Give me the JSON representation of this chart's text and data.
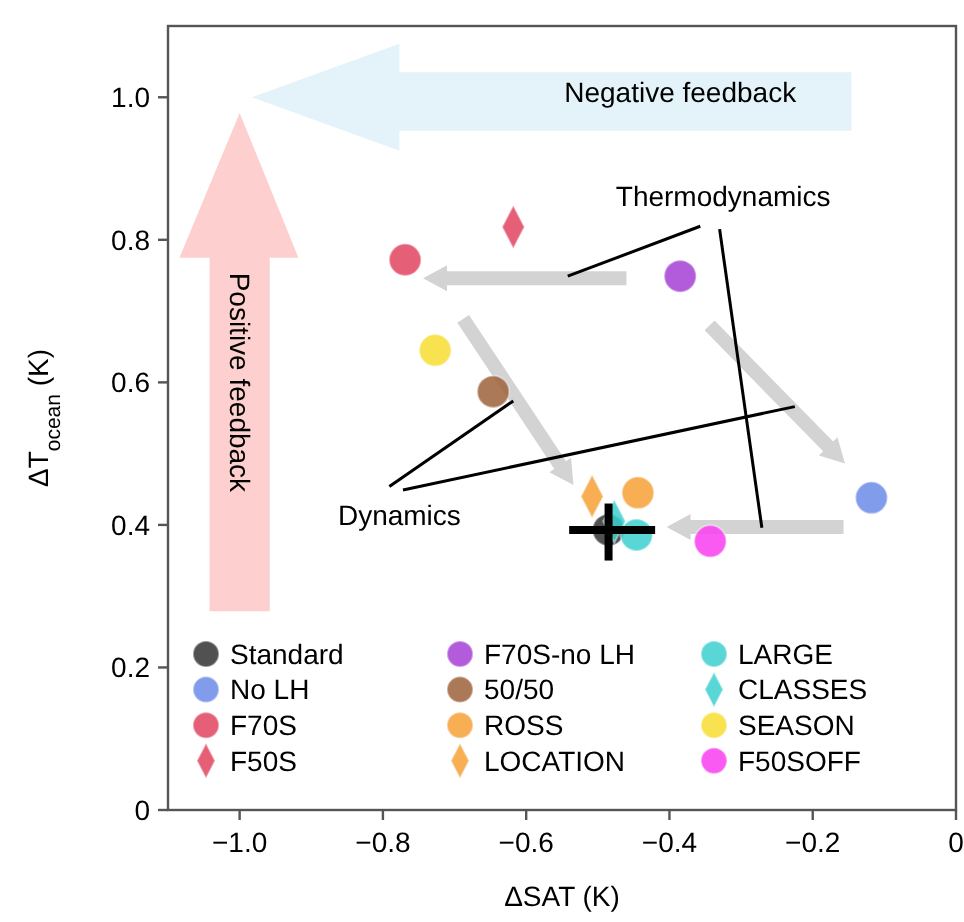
{
  "chart_data": {
    "type": "scatter",
    "xlabel": "ΔSAT (K)",
    "ylabel": "ΔT$_{ocean}$ (K)",
    "xlim": [
      -1.1,
      0
    ],
    "ylim": [
      0,
      1.1
    ],
    "xticks": [
      {
        "value": -1,
        "label": "−1.0"
      },
      {
        "value": -0.8,
        "label": "−0.8"
      },
      {
        "value": -0.6,
        "label": "−0.6"
      },
      {
        "value": -0.4,
        "label": "−0.4"
      },
      {
        "value": -0.2,
        "label": "−0.2"
      },
      0
    ],
    "yticks": [
      0,
      0.2,
      0.4,
      0.6,
      0.8,
      {
        "value": 1,
        "label": "1.0"
      }
    ],
    "legend": "bottom",
    "marker": "circle",
    "annotations": [
      "Negative feedback",
      "Positive feedback",
      "Thermodynamics",
      {
        "text": "Dynamics",
        "x": -0.618,
        "y": 0.574
      }
    ],
    "series": [
      {
        "name": "Standard",
        "color": "#333333",
        "x": [
          -0.485
        ],
        "values": [
          0.393
        ],
        "errors": [
          [
            0.35,
            0.43
          ]
        ],
        "xerrors": [
          [
            -0.54,
            -0.42
          ]
        ]
      },
      {
        "name": "No LH",
        "color": "#6b8be8",
        "x": [
          -0.118
        ],
        "values": [
          0.438
        ]
      },
      {
        "name": "F70S",
        "color": "#e0435f",
        "x": [
          -0.769
        ],
        "values": [
          0.772
        ]
      },
      {
        "name": "F50S",
        "color": "#e0435f",
        "x": [
          -0.618
        ],
        "values": [
          0.818
        ],
        "marker": "diamond"
      },
      {
        "name": "F70S-no LH",
        "color": "#a43fd6",
        "x": [
          -0.385
        ],
        "values": [
          0.749
        ]
      },
      {
        "name": "50/50",
        "color": "#9c6239",
        "x": [
          -0.646
        ],
        "values": [
          0.587
        ]
      },
      {
        "name": "ROSS",
        "color": "#f7a035",
        "x": [
          -0.444
        ],
        "values": [
          0.445
        ]
      },
      {
        "name": "LOCATION",
        "color": "#f7a035",
        "x": [
          -0.508
        ],
        "values": [
          0.44
        ],
        "marker": "diamond"
      },
      {
        "name": "LARGE",
        "color": "#3ccfcf",
        "x": [
          -0.446
        ],
        "values": [
          0.386
        ]
      },
      {
        "name": "CLASSES",
        "color": "#3ccfcf",
        "x": [
          -0.477
        ],
        "values": [
          0.405
        ],
        "marker": "diamond"
      },
      {
        "name": "SEASON",
        "color": "#f8dd30",
        "x": [
          -0.727
        ],
        "values": [
          0.645
        ]
      },
      {
        "name": "F50SOFF",
        "color": "#f93cf0",
        "x": [
          -0.343
        ],
        "values": [
          0.377
        ]
      }
    ]
  }
}
